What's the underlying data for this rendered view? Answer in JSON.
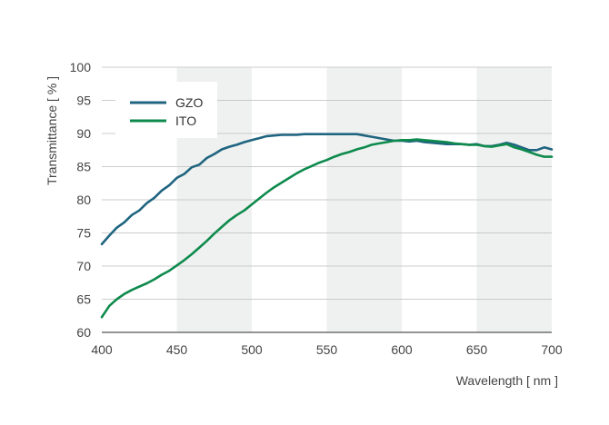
{
  "chart_data": {
    "type": "line",
    "title": "",
    "xlabel": "Wavelength [ nm ]",
    "ylabel": "Transmittance [ % ]",
    "xlim": [
      400,
      700
    ],
    "ylim": [
      60,
      100
    ],
    "xticks": [
      400,
      450,
      500,
      550,
      600,
      650,
      700
    ],
    "yticks": [
      60,
      65,
      70,
      75,
      80,
      85,
      90,
      95,
      100
    ],
    "grid": "horizontal",
    "shaded_bands": [
      [
        450,
        500
      ],
      [
        550,
        600
      ],
      [
        650,
        700
      ]
    ],
    "legend_position": "top-left",
    "series": [
      {
        "name": "GZO",
        "color": "#1f6480",
        "x": [
          400,
          405,
          410,
          415,
          420,
          425,
          430,
          435,
          440,
          445,
          450,
          455,
          460,
          465,
          470,
          475,
          480,
          485,
          490,
          495,
          500,
          505,
          510,
          515,
          520,
          525,
          530,
          535,
          540,
          545,
          550,
          555,
          560,
          565,
          570,
          575,
          580,
          585,
          590,
          595,
          600,
          605,
          610,
          615,
          620,
          625,
          630,
          635,
          640,
          645,
          650,
          655,
          660,
          665,
          670,
          675,
          680,
          685,
          690,
          695,
          700
        ],
        "y": [
          73.3,
          74.6,
          75.8,
          76.6,
          77.7,
          78.4,
          79.5,
          80.3,
          81.4,
          82.2,
          83.3,
          83.9,
          84.9,
          85.3,
          86.3,
          86.9,
          87.6,
          88.0,
          88.3,
          88.7,
          89.0,
          89.3,
          89.6,
          89.7,
          89.8,
          89.8,
          89.8,
          89.9,
          89.9,
          89.9,
          89.9,
          89.9,
          89.9,
          89.9,
          89.9,
          89.7,
          89.5,
          89.3,
          89.1,
          88.9,
          88.9,
          88.8,
          88.9,
          88.7,
          88.6,
          88.5,
          88.4,
          88.4,
          88.4,
          88.3,
          88.4,
          88.1,
          88.1,
          88.3,
          88.6,
          88.3,
          87.9,
          87.5,
          87.5,
          87.9,
          87.6
        ]
      },
      {
        "name": "ITO",
        "color": "#0e8a4d",
        "x": [
          400,
          405,
          410,
          415,
          420,
          425,
          430,
          435,
          440,
          445,
          450,
          455,
          460,
          465,
          470,
          475,
          480,
          485,
          490,
          495,
          500,
          505,
          510,
          515,
          520,
          525,
          530,
          535,
          540,
          545,
          550,
          555,
          560,
          565,
          570,
          575,
          580,
          585,
          590,
          595,
          600,
          605,
          610,
          615,
          620,
          625,
          630,
          635,
          640,
          645,
          650,
          655,
          660,
          665,
          670,
          675,
          680,
          685,
          690,
          695,
          700
        ],
        "y": [
          62.3,
          64.0,
          65.0,
          65.8,
          66.4,
          66.9,
          67.4,
          68.0,
          68.7,
          69.3,
          70.1,
          70.9,
          71.8,
          72.8,
          73.8,
          74.9,
          75.9,
          76.9,
          77.7,
          78.4,
          79.3,
          80.2,
          81.1,
          81.9,
          82.6,
          83.3,
          84.0,
          84.6,
          85.1,
          85.6,
          86.0,
          86.5,
          86.9,
          87.2,
          87.6,
          87.9,
          88.3,
          88.5,
          88.7,
          88.9,
          89.0,
          89.0,
          89.1,
          89.0,
          88.9,
          88.8,
          88.7,
          88.5,
          88.4,
          88.3,
          88.3,
          88.1,
          88.0,
          88.2,
          88.4,
          87.9,
          87.6,
          87.2,
          86.8,
          86.5,
          86.5
        ]
      }
    ]
  }
}
